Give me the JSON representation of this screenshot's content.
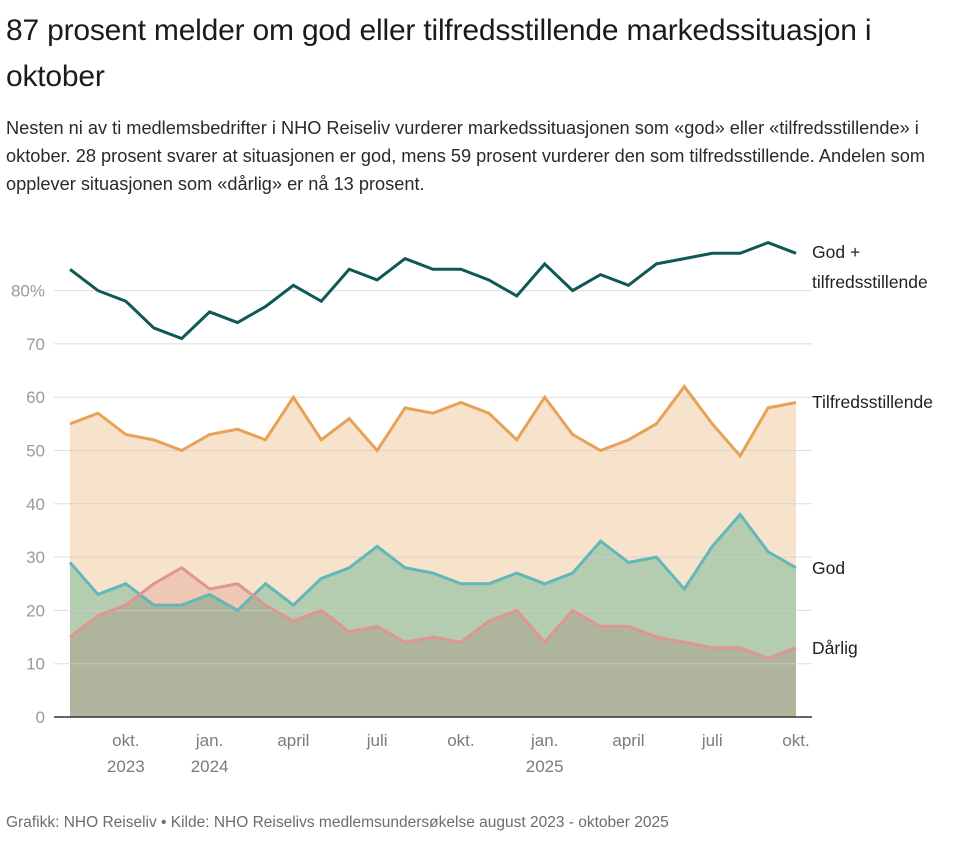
{
  "header": {
    "title": "87 prosent melder om god eller tilfredsstillende markedssituasjon i oktober",
    "subtitle": "Nesten ni av ti medlemsbedrifter i NHO Reiseliv vurderer markedssituasjonen som «god» eller «tilfredsstillende» i oktober. 28 prosent svarer at situasjonen er god, mens 59 prosent vurderer den som tilfredsstillende. Andelen som opplever situasjonen som «dårlig» er nå 13 prosent."
  },
  "footer": {
    "source": "Grafikk: NHO Reiseliv • Kilde: NHO Reiselivs medlemsundersøkelse august 2023 - oktober 2025"
  },
  "chart_data": {
    "type": "line",
    "title": "87 prosent melder om god eller tilfredsstillende markedssituasjon i oktober",
    "xlabel": "",
    "ylabel": "",
    "ylim": [
      0,
      90
    ],
    "grid": true,
    "legend": "inline-right",
    "x": [
      "2023-08",
      "2023-09",
      "2023-10",
      "2023-11",
      "2023-12",
      "2024-01",
      "2024-02",
      "2024-03",
      "2024-04",
      "2024-05",
      "2024-06",
      "2024-07",
      "2024-08",
      "2024-09",
      "2024-10",
      "2024-11",
      "2024-12",
      "2025-01",
      "2025-02",
      "2025-03",
      "2025-04",
      "2025-05",
      "2025-06",
      "2025-07",
      "2025-08",
      "2025-09",
      "2025-10"
    ],
    "yticks": [
      {
        "value": 0,
        "label": "0"
      },
      {
        "value": 10,
        "label": "10"
      },
      {
        "value": 20,
        "label": "20"
      },
      {
        "value": 30,
        "label": "30"
      },
      {
        "value": 40,
        "label": "40"
      },
      {
        "value": 50,
        "label": "50"
      },
      {
        "value": 60,
        "label": "60"
      },
      {
        "value": 70,
        "label": "70"
      },
      {
        "value": 80,
        "label": "80%"
      }
    ],
    "xticks": [
      {
        "index": 2,
        "label": "okt.",
        "year": "2023"
      },
      {
        "index": 5,
        "label": "jan.",
        "year": "2024"
      },
      {
        "index": 8,
        "label": "april",
        "year": ""
      },
      {
        "index": 11,
        "label": "juli",
        "year": ""
      },
      {
        "index": 14,
        "label": "okt.",
        "year": ""
      },
      {
        "index": 17,
        "label": "jan.",
        "year": "2025"
      },
      {
        "index": 20,
        "label": "april",
        "year": ""
      },
      {
        "index": 23,
        "label": "juli",
        "year": ""
      },
      {
        "index": 26,
        "label": "okt.",
        "year": ""
      }
    ],
    "series": [
      {
        "name": "Tilfredsstillende",
        "label": "Tilfredsstillende",
        "color": "#e8a257",
        "fill": "#f7e2cc",
        "area": true,
        "values": [
          55,
          57,
          53,
          52,
          50,
          53,
          54,
          52,
          60,
          52,
          56,
          50,
          58,
          57,
          59,
          57,
          52,
          60,
          53,
          50,
          52,
          55,
          62,
          55,
          49,
          58,
          59
        ]
      },
      {
        "name": "God",
        "label": "God",
        "color": "#62b7b9",
        "fill": "#a6e0d2",
        "area": true,
        "values": [
          29,
          23,
          25,
          21,
          21,
          23,
          20,
          25,
          21,
          26,
          28,
          32,
          28,
          27,
          25,
          25,
          27,
          25,
          27,
          33,
          29,
          30,
          24,
          32,
          38,
          31,
          28
        ]
      },
      {
        "name": "Dårlig",
        "label": "Dårlig",
        "color": "#e0968f",
        "fill": "#f5dada",
        "area": true,
        "values": [
          15,
          19,
          21,
          25,
          28,
          24,
          25,
          21,
          18,
          20,
          16,
          17,
          14,
          15,
          14,
          18,
          20,
          14,
          20,
          17,
          17,
          15,
          14,
          13,
          13,
          11,
          13
        ]
      },
      {
        "name": "God + tilfredsstillende",
        "label": [
          "God +",
          "tilfredsstillende"
        ],
        "color": "#0e5856",
        "area": false,
        "values": [
          84,
          80,
          78,
          73,
          71,
          76,
          74,
          77,
          81,
          78,
          84,
          82,
          86,
          84,
          84,
          82,
          79,
          85,
          80,
          83,
          81,
          85,
          86,
          87,
          87,
          89,
          87
        ]
      }
    ]
  }
}
